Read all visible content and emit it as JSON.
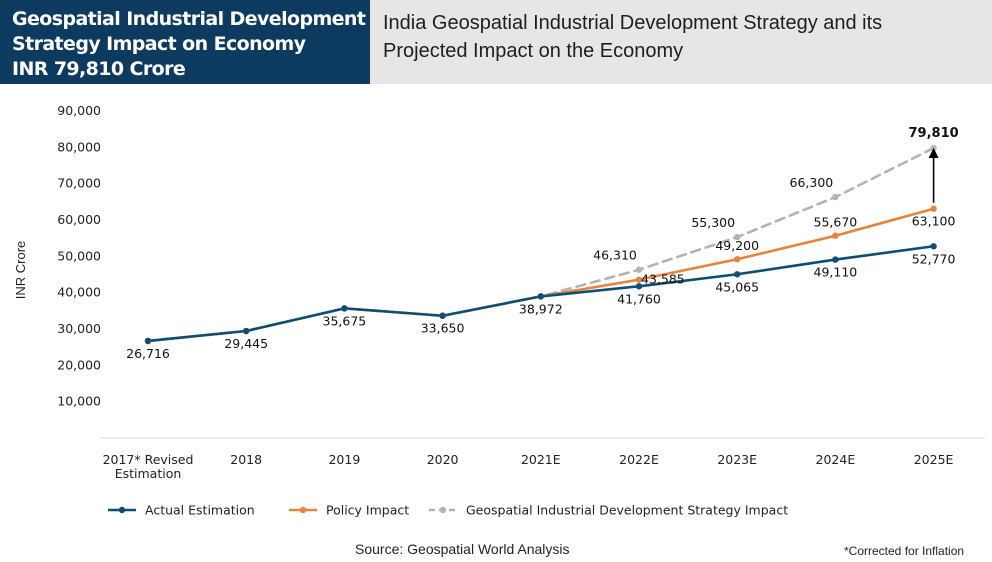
{
  "header": {
    "left_lines": [
      "Geospatial Industrial Development",
      "Strategy Impact on Economy",
      "INR 79,810 Crore"
    ],
    "right_lines": [
      "India Geospatial Industrial Development Strategy and its",
      "Projected Impact on the Economy"
    ]
  },
  "footer": {
    "source": "Source: Geospatial World Analysis",
    "note": "*Corrected for Inflation"
  },
  "colors": {
    "actual": "#0d4f74",
    "policy": "#e8833a",
    "strategy": "#b3b3b3",
    "header_bg": "#0d3a5f"
  },
  "chart_data": {
    "type": "line",
    "title": "",
    "xlabel": "",
    "ylabel": "INR Crore",
    "ylim": [
      0,
      90000
    ],
    "yticks": [
      "90,000",
      "80,000",
      "70,000",
      "60,000",
      "50,000",
      "40,000",
      "30,000",
      "20,000",
      "10,000"
    ],
    "ytick_values": [
      90000,
      80000,
      70000,
      60000,
      50000,
      40000,
      30000,
      20000,
      10000
    ],
    "categories": [
      [
        "2017* Revised",
        "Estimation"
      ],
      [
        "2018"
      ],
      [
        "2019"
      ],
      [
        "2020"
      ],
      [
        "2021E"
      ],
      [
        "2022E"
      ],
      [
        "2023E"
      ],
      [
        "2024E"
      ],
      [
        "2025E"
      ]
    ],
    "series": [
      {
        "name": "Geospatial Industrial Development Strategy Impact",
        "values": [
          26716,
          29445,
          35675,
          33650,
          38972,
          46310,
          55300,
          66300,
          79810
        ]
      },
      {
        "name": "Policy Impact",
        "values": [
          26716,
          29445,
          35675,
          33650,
          38972,
          43585,
          49200,
          55670,
          63100
        ]
      },
      {
        "name": "Actual Estimation",
        "values": [
          26716,
          29445,
          35675,
          33650,
          38972,
          41760,
          45065,
          49110,
          52770
        ]
      }
    ],
    "data_labels": [
      {
        "label": "26,716",
        "series": 2,
        "index": 0,
        "pos": "below"
      },
      {
        "label": "29,445",
        "series": 2,
        "index": 1,
        "pos": "below"
      },
      {
        "label": "35,675",
        "series": 2,
        "index": 2,
        "pos": "below"
      },
      {
        "label": "33,650",
        "series": 2,
        "index": 3,
        "pos": "below"
      },
      {
        "label": "38,972",
        "series": 2,
        "index": 4,
        "pos": "below"
      },
      {
        "label": "41,760",
        "series": 2,
        "index": 5,
        "pos": "below"
      },
      {
        "label": "45,065",
        "series": 2,
        "index": 6,
        "pos": "below"
      },
      {
        "label": "49,110",
        "series": 2,
        "index": 7,
        "pos": "below"
      },
      {
        "label": "52,770",
        "series": 2,
        "index": 8,
        "pos": "below"
      },
      {
        "label": "43,585",
        "series": 1,
        "index": 5,
        "pos": "right"
      },
      {
        "label": "49,200",
        "series": 1,
        "index": 6,
        "pos": "above"
      },
      {
        "label": "55,670",
        "series": 1,
        "index": 7,
        "pos": "above"
      },
      {
        "label": "63,100",
        "series": 1,
        "index": 8,
        "pos": "below"
      },
      {
        "label": "46,310",
        "series": 0,
        "index": 5,
        "pos": "above-left"
      },
      {
        "label": "55,300",
        "series": 0,
        "index": 6,
        "pos": "above-left"
      },
      {
        "label": "66,300",
        "series": 0,
        "index": 7,
        "pos": "above-left"
      },
      {
        "label": "79,810",
        "series": 0,
        "index": 8,
        "pos": "top-bold"
      }
    ],
    "legend": {
      "placement": "bottom-left",
      "entries": [
        "Actual Estimation",
        "Policy Impact",
        "Geospatial Industrial Development Strategy Impact"
      ]
    },
    "grid": false,
    "annotation_arrow": {
      "from_series": 1,
      "to_series": 0,
      "index": 8
    }
  }
}
